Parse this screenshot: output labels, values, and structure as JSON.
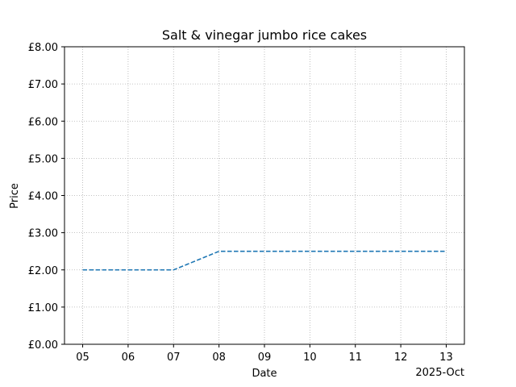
{
  "chart_data": {
    "type": "line",
    "title": "Salt & vinegar jumbo rice cakes",
    "xlabel": "Date",
    "ylabel": "Price",
    "x_offset_label": "2025-Oct",
    "x_tick_labels": [
      "05",
      "06",
      "07",
      "08",
      "09",
      "10",
      "11",
      "12",
      "13"
    ],
    "y_tick_labels": [
      "£0.00",
      "£1.00",
      "£2.00",
      "£3.00",
      "£4.00",
      "£5.00",
      "£6.00",
      "£7.00",
      "£8.00"
    ],
    "ylim": [
      0,
      8
    ],
    "xlim": [
      "2025-10-04T14:24",
      "2025-10-13T09:36"
    ],
    "grid": true,
    "line_style": "dashed",
    "line_color": "#1f77b4",
    "series": [
      {
        "x": [
          "2025-10-05",
          "2025-10-06",
          "2025-10-07",
          "2025-10-08",
          "2025-10-09",
          "2025-10-10",
          "2025-10-11",
          "2025-10-12",
          "2025-10-13"
        ],
        "values": [
          2.0,
          2.0,
          2.0,
          2.5,
          2.5,
          2.5,
          2.5,
          2.5,
          2.5
        ]
      }
    ]
  }
}
